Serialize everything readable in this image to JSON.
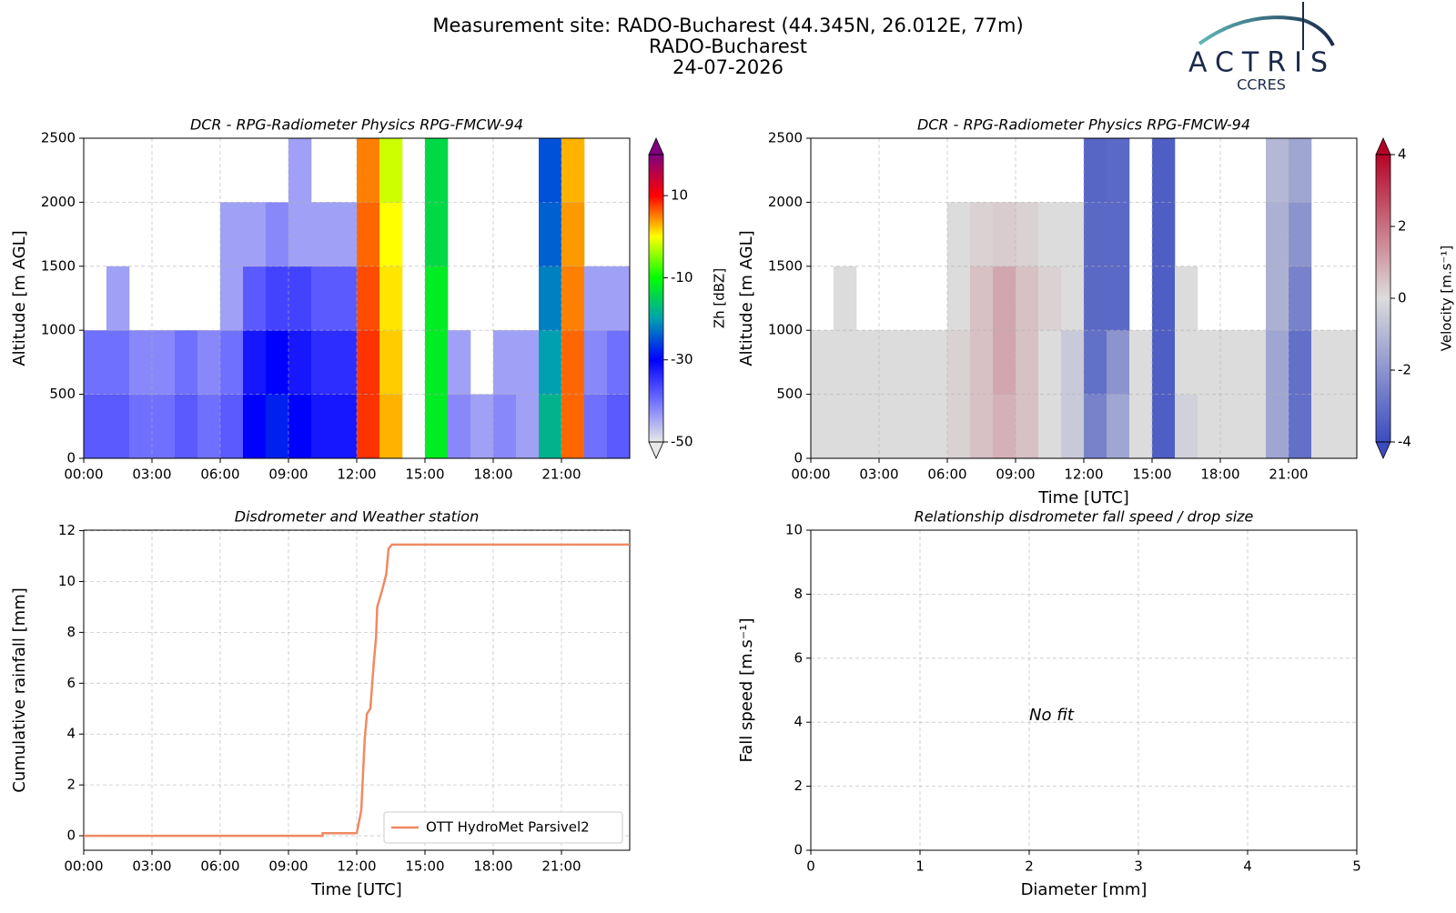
{
  "header": {
    "title": "Measurement site: RADO-Bucharest (44.345N, 26.012E, 77m)",
    "subtitle": "RADO-Bucharest",
    "date": "24-07-2026",
    "logo": "ACTRIS",
    "logo_sub": "CCRES"
  },
  "chart_data": [
    {
      "type": "heatmap",
      "title": "DCR - RPG-Radiometer Physics RPG-FMCW-94",
      "ylabel": "Altitude [m AGL]",
      "xlim": [
        0,
        24
      ],
      "xticks": [
        {
          "value": 0,
          "label": "00:00"
        },
        {
          "value": 3,
          "label": "03:00"
        },
        {
          "value": 6,
          "label": "06:00"
        },
        {
          "value": 9,
          "label": "09:00"
        },
        {
          "value": 12,
          "label": "12:00"
        },
        {
          "value": 15,
          "label": "15:00"
        },
        {
          "value": 18,
          "label": "18:00"
        },
        {
          "value": 21,
          "label": "21:00"
        }
      ],
      "ylim": [
        0,
        2500
      ],
      "yticks": [
        0,
        500,
        1000,
        1500,
        2000,
        2500
      ],
      "grid": true,
      "xbins": [
        0,
        1,
        2,
        3,
        4,
        5,
        6,
        7,
        8,
        9,
        10,
        11,
        12,
        13,
        14,
        15,
        16,
        17,
        18,
        19,
        20,
        21,
        22,
        23,
        24
      ],
      "ybins": [
        0,
        500,
        1000,
        1500,
        2000,
        2500
      ],
      "z": [
        [
          -38,
          -38,
          -40,
          -40,
          -38,
          -40,
          -38,
          -30,
          -28,
          -30,
          -32,
          -32,
          8,
          3,
          null,
          -12,
          -42,
          -44,
          -42,
          -44,
          -18,
          6,
          -40,
          -38
        ],
        [
          -40,
          -40,
          -42,
          -42,
          -40,
          -42,
          -40,
          -32,
          -30,
          -32,
          -34,
          -34,
          8,
          2,
          null,
          -12,
          -44,
          null,
          -44,
          -44,
          -20,
          6,
          -42,
          -40
        ],
        [
          null,
          -44,
          null,
          null,
          null,
          null,
          -44,
          -38,
          -36,
          -36,
          -38,
          -38,
          7,
          1,
          null,
          -12,
          null,
          null,
          null,
          null,
          -22,
          5,
          -44,
          -44
        ],
        [
          null,
          null,
          null,
          null,
          null,
          null,
          -44,
          -44,
          -42,
          -44,
          -44,
          -44,
          6,
          0,
          null,
          -14,
          null,
          null,
          null,
          null,
          -24,
          4,
          null,
          null
        ],
        [
          null,
          null,
          null,
          null,
          null,
          null,
          null,
          null,
          null,
          -44,
          null,
          null,
          5,
          -2,
          null,
          -14,
          null,
          null,
          null,
          null,
          -25,
          3,
          null,
          null
        ]
      ],
      "zlim": [
        -50,
        20
      ],
      "zticks": [
        -50,
        -30,
        -10,
        10
      ],
      "colorbar_label": "Zh [dBZ]",
      "colorscale": [
        "#e8e8e8",
        "#7070ff",
        "#0000ff",
        "#00a0b0",
        "#00ff00",
        "#ffff00",
        "#ff0000",
        "#800080"
      ]
    },
    {
      "type": "heatmap",
      "title": "DCR - RPG-Radiometer Physics RPG-FMCW-94",
      "ylabel": "Altitude [m AGL]",
      "xlabel": "Time [UTC]",
      "xlim": [
        0,
        24
      ],
      "xticks": [
        {
          "value": 0,
          "label": "00:00"
        },
        {
          "value": 3,
          "label": "03:00"
        },
        {
          "value": 6,
          "label": "06:00"
        },
        {
          "value": 9,
          "label": "09:00"
        },
        {
          "value": 12,
          "label": "12:00"
        },
        {
          "value": 15,
          "label": "15:00"
        },
        {
          "value": 18,
          "label": "18:00"
        },
        {
          "value": 21,
          "label": "21:00"
        }
      ],
      "ylim": [
        0,
        2500
      ],
      "yticks": [
        0,
        500,
        1000,
        1500,
        2000,
        2500
      ],
      "grid": true,
      "xbins": [
        0,
        1,
        2,
        3,
        4,
        5,
        6,
        7,
        8,
        9,
        10,
        11,
        12,
        13,
        14,
        15,
        16,
        17,
        18,
        19,
        20,
        21,
        22,
        23,
        24
      ],
      "ybins": [
        0,
        500,
        1000,
        1500,
        2000,
        2500
      ],
      "z": [
        [
          0,
          0,
          0,
          0,
          0,
          0,
          0.2,
          0.5,
          0.8,
          0.5,
          0,
          -0.5,
          -2.5,
          -1.5,
          0,
          -3.5,
          -0.3,
          0,
          0,
          0,
          -1.5,
          -3,
          0,
          0
        ],
        [
          0,
          0,
          0,
          0,
          0,
          0,
          0.2,
          0.5,
          1,
          0.5,
          0,
          -0.5,
          -3,
          -2,
          0,
          -3.5,
          0,
          0,
          0,
          0,
          -1.5,
          -3,
          0,
          0
        ],
        [
          null,
          0,
          null,
          null,
          null,
          null,
          0,
          0.5,
          1,
          0.5,
          0.2,
          0,
          -3.2,
          -3.2,
          null,
          -3.5,
          0,
          null,
          null,
          null,
          -1.2,
          -2.5,
          null,
          null
        ],
        [
          null,
          null,
          null,
          null,
          null,
          null,
          0,
          0.2,
          0.3,
          0.2,
          0,
          0,
          -3.2,
          -3.2,
          null,
          -3.5,
          null,
          null,
          null,
          null,
          -1.2,
          -2,
          null,
          null
        ],
        [
          null,
          null,
          null,
          null,
          null,
          null,
          null,
          null,
          null,
          null,
          null,
          null,
          -3.3,
          -3.2,
          null,
          -3.5,
          null,
          null,
          null,
          null,
          -1,
          -1.5,
          null,
          null
        ]
      ],
      "zlim": [
        -4,
        4
      ],
      "zticks": [
        -4,
        -2,
        0,
        2,
        4
      ],
      "colorbar_label": "Velocity [m.s⁻¹]",
      "colorscale": [
        "#3b4cc0",
        "#dcdcdc",
        "#b40426"
      ]
    },
    {
      "type": "line",
      "title": "Disdrometer and Weather station",
      "ylabel": "Cumulative rainfall [mm]",
      "xlabel": "Time [UTC]",
      "xlim": [
        0,
        24
      ],
      "xticks": [
        {
          "value": 0,
          "label": "00:00"
        },
        {
          "value": 3,
          "label": "03:00"
        },
        {
          "value": 6,
          "label": "06:00"
        },
        {
          "value": 9,
          "label": "09:00"
        },
        {
          "value": 12,
          "label": "12:00"
        },
        {
          "value": 15,
          "label": "15:00"
        },
        {
          "value": 18,
          "label": "18:00"
        },
        {
          "value": 21,
          "label": "21:00"
        }
      ],
      "ylim": [
        -0.57,
        12.02
      ],
      "yticks": [
        0,
        2,
        4,
        6,
        8,
        10,
        12
      ],
      "grid": true,
      "legend": "lower right",
      "x": [
        0,
        10.5,
        10.5,
        12,
        12.2,
        12.35,
        12.45,
        12.6,
        12.75,
        12.85,
        12.9,
        13.1,
        13.3,
        13.4,
        13.55,
        24
      ],
      "series": [
        {
          "name": "OTT HydroMet Parsivel2",
          "color": "#ef8a62",
          "values": [
            0,
            0,
            0.1,
            0.1,
            1,
            3.8,
            4.8,
            5,
            6.8,
            7.8,
            9,
            9.6,
            10.3,
            11.3,
            11.45,
            11.45
          ]
        }
      ]
    },
    {
      "type": "scatter",
      "title": "Relationship disdrometer fall speed / drop size",
      "ylabel": "Fall speed [m.s⁻¹]",
      "xlabel": "Diameter [mm]",
      "xlim": [
        0,
        5
      ],
      "xticks": [
        0,
        1,
        2,
        3,
        4,
        5
      ],
      "ylim": [
        0,
        10
      ],
      "yticks": [
        0,
        2,
        4,
        6,
        8,
        10
      ],
      "grid": true,
      "series": [],
      "annotations": [
        {
          "text": "No fit",
          "x": 2,
          "y": 4.2
        }
      ]
    }
  ]
}
